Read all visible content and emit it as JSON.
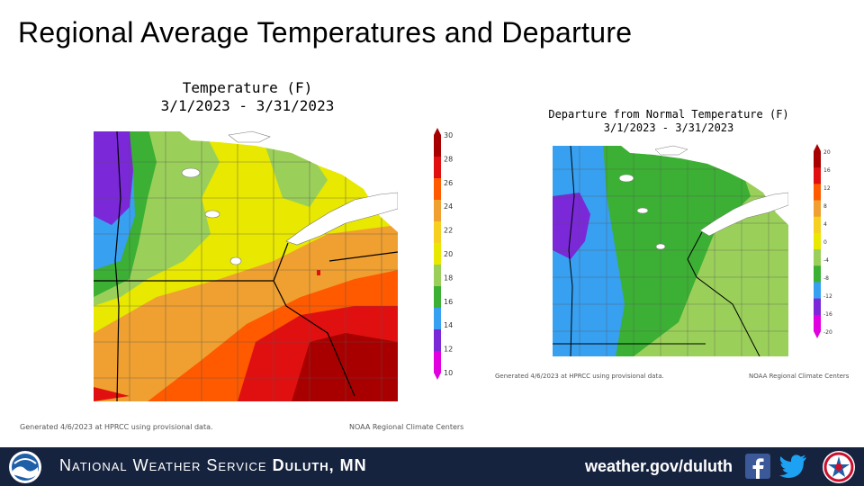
{
  "slide": {
    "title": "Regional Average Temperatures and Departure"
  },
  "left_map": {
    "title_line1": "Temperature (F)",
    "title_line2": "3/1/2023 - 3/31/2023",
    "legend_ticks": [
      "30",
      "28",
      "26",
      "24",
      "22",
      "20",
      "18",
      "16",
      "14",
      "12",
      "10"
    ],
    "legend_colors": [
      "#a80000",
      "#e01010",
      "#ff5a00",
      "#f0a030",
      "#f5d020",
      "#e8e800",
      "#9ad05a",
      "#3cb034",
      "#38a0f0",
      "#7a28d8",
      "#e000e0"
    ],
    "generated": "Generated 4/6/2023 at HPRCC using provisional data.",
    "credit": "NOAA Regional Climate Centers"
  },
  "right_map": {
    "title_line1": "Departure from Normal Temperature (F)",
    "title_line2": "3/1/2023 - 3/31/2023",
    "legend_ticks": [
      "20",
      "16",
      "12",
      "8",
      "4",
      "0",
      "-4",
      "-8",
      "-12",
      "-16",
      "-20"
    ],
    "legend_colors": [
      "#a80000",
      "#e01010",
      "#ff5a00",
      "#f0a030",
      "#f5d020",
      "#e8e800",
      "#9ad05a",
      "#3cb034",
      "#38a0f0",
      "#7a28d8",
      "#e000e0"
    ],
    "generated": "Generated 4/6/2023 at HPRCC using provisional data.",
    "credit": "NOAA Regional Climate Centers"
  },
  "footer": {
    "agency_prefix": "National Weather Service",
    "agency_office": "Duluth, MN",
    "website": "weather.gov/duluth",
    "logo_left": "noaa-logo",
    "logo_right": "nws-logo",
    "social_icons": [
      "facebook-icon",
      "twitter-icon"
    ]
  }
}
